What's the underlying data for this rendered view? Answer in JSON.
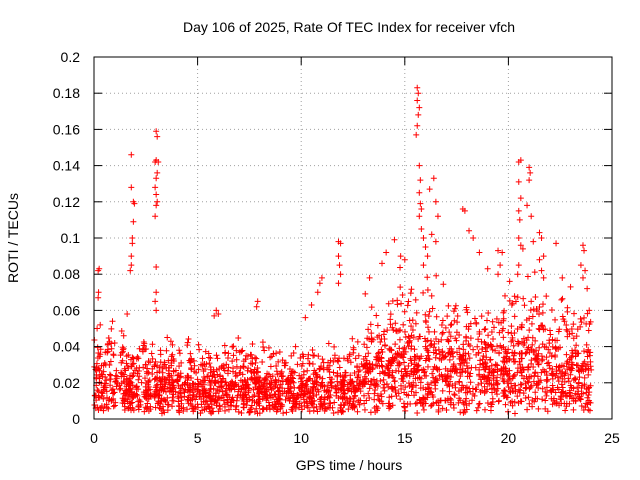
{
  "chart_data": {
    "type": "scatter",
    "title": "Day 106 of 2025, Rate Of TEC Index for receiver vfch",
    "xlabel": "GPS time / hours",
    "ylabel": "ROTI / TECUs",
    "xlim": [
      0,
      25
    ],
    "ylim": [
      0,
      0.2
    ],
    "x_ticks": [
      0,
      5,
      10,
      15,
      20,
      25
    ],
    "y_ticks": [
      0,
      0.02,
      0.04,
      0.06,
      0.08,
      0.1,
      0.12,
      0.14,
      0.16,
      0.18,
      0.2
    ],
    "x_tick_labels": [
      "0",
      "5",
      "10",
      "15",
      "20",
      "25"
    ],
    "y_tick_labels": [
      "0",
      "0.02",
      "0.04",
      "0.06",
      "0.08",
      "0.1",
      "0.12",
      "0.14",
      "0.16",
      "0.18",
      "0.2"
    ],
    "grid": true,
    "marker": "+",
    "series_color": "#ff0000",
    "series": [
      {
        "name": "ROTI",
        "points": [
          [
            0.2,
            0.082
          ],
          [
            0.25,
            0.083
          ],
          [
            0.22,
            0.07
          ],
          [
            0.2,
            0.067
          ],
          [
            0.15,
            0.05
          ],
          [
            0.3,
            0.052
          ],
          [
            1.8,
            0.146
          ],
          [
            1.8,
            0.128
          ],
          [
            1.9,
            0.12
          ],
          [
            1.95,
            0.119
          ],
          [
            1.9,
            0.109
          ],
          [
            1.85,
            0.1
          ],
          [
            1.85,
            0.097
          ],
          [
            1.8,
            0.09
          ],
          [
            1.8,
            0.085
          ],
          [
            1.75,
            0.082
          ],
          [
            1.6,
            0.058
          ],
          [
            3.0,
            0.159
          ],
          [
            3.05,
            0.156
          ],
          [
            3.0,
            0.143
          ],
          [
            2.95,
            0.142
          ],
          [
            3.1,
            0.142
          ],
          [
            3.05,
            0.136
          ],
          [
            3.0,
            0.133
          ],
          [
            2.95,
            0.128
          ],
          [
            3.0,
            0.124
          ],
          [
            3.05,
            0.12
          ],
          [
            3.0,
            0.118
          ],
          [
            2.95,
            0.112
          ],
          [
            3.0,
            0.084
          ],
          [
            3.0,
            0.07
          ],
          [
            2.95,
            0.065
          ],
          [
            3.0,
            0.06
          ],
          [
            5.9,
            0.06
          ],
          [
            6.0,
            0.058
          ],
          [
            5.8,
            0.057
          ],
          [
            7.9,
            0.065
          ],
          [
            7.85,
            0.062
          ],
          [
            11.8,
            0.098
          ],
          [
            11.9,
            0.097
          ],
          [
            11.8,
            0.09
          ],
          [
            11.85,
            0.085
          ],
          [
            11.9,
            0.08
          ],
          [
            11.8,
            0.075
          ],
          [
            11.0,
            0.078
          ],
          [
            10.9,
            0.075
          ],
          [
            10.8,
            0.07
          ],
          [
            10.5,
            0.063
          ],
          [
            10.2,
            0.056
          ],
          [
            13.3,
            0.078
          ],
          [
            13.9,
            0.086
          ],
          [
            14.1,
            0.092
          ],
          [
            14.5,
            0.099
          ],
          [
            14.8,
            0.09
          ],
          [
            15.0,
            0.088
          ],
          [
            15.6,
            0.183
          ],
          [
            15.65,
            0.18
          ],
          [
            15.6,
            0.176
          ],
          [
            15.7,
            0.172
          ],
          [
            15.65,
            0.168
          ],
          [
            15.6,
            0.162
          ],
          [
            15.55,
            0.157
          ],
          [
            15.7,
            0.14
          ],
          [
            15.75,
            0.132
          ],
          [
            15.7,
            0.125
          ],
          [
            15.75,
            0.119
          ],
          [
            15.8,
            0.116
          ],
          [
            15.7,
            0.112
          ],
          [
            15.8,
            0.105
          ],
          [
            15.9,
            0.1
          ],
          [
            16.0,
            0.095
          ],
          [
            16.1,
            0.09
          ],
          [
            15.9,
            0.085
          ],
          [
            16.2,
            0.127
          ],
          [
            16.4,
            0.133
          ],
          [
            16.5,
            0.12
          ],
          [
            16.6,
            0.112
          ],
          [
            16.3,
            0.102
          ],
          [
            16.5,
            0.098
          ],
          [
            17.8,
            0.116
          ],
          [
            17.9,
            0.115
          ],
          [
            18.1,
            0.104
          ],
          [
            18.3,
            0.1
          ],
          [
            18.6,
            0.092
          ],
          [
            19.0,
            0.083
          ],
          [
            19.5,
            0.093
          ],
          [
            19.7,
            0.092
          ],
          [
            19.6,
            0.085
          ],
          [
            19.5,
            0.08
          ],
          [
            20.5,
            0.142
          ],
          [
            20.6,
            0.143
          ],
          [
            20.5,
            0.131
          ],
          [
            20.6,
            0.122
          ],
          [
            20.5,
            0.115
          ],
          [
            20.55,
            0.11
          ],
          [
            20.5,
            0.1
          ],
          [
            20.6,
            0.096
          ],
          [
            20.7,
            0.094
          ],
          [
            20.5,
            0.085
          ],
          [
            20.45,
            0.08
          ],
          [
            21.0,
            0.139
          ],
          [
            21.05,
            0.136
          ],
          [
            21.0,
            0.132
          ],
          [
            20.9,
            0.118
          ],
          [
            21.1,
            0.112
          ],
          [
            21.2,
            0.098
          ],
          [
            21.5,
            0.103
          ],
          [
            21.6,
            0.1
          ],
          [
            21.7,
            0.09
          ],
          [
            21.5,
            0.088
          ],
          [
            21.6,
            0.082
          ],
          [
            21.7,
            0.078
          ],
          [
            22.3,
            0.097
          ],
          [
            22.6,
            0.078
          ],
          [
            23.0,
            0.073
          ],
          [
            23.5,
            0.085
          ],
          [
            23.6,
            0.096
          ],
          [
            23.65,
            0.093
          ],
          [
            23.7,
            0.082
          ],
          [
            23.6,
            0.078
          ],
          [
            23.8,
            0.072
          ],
          [
            23.9,
            0.06
          ]
        ]
      }
    ]
  }
}
